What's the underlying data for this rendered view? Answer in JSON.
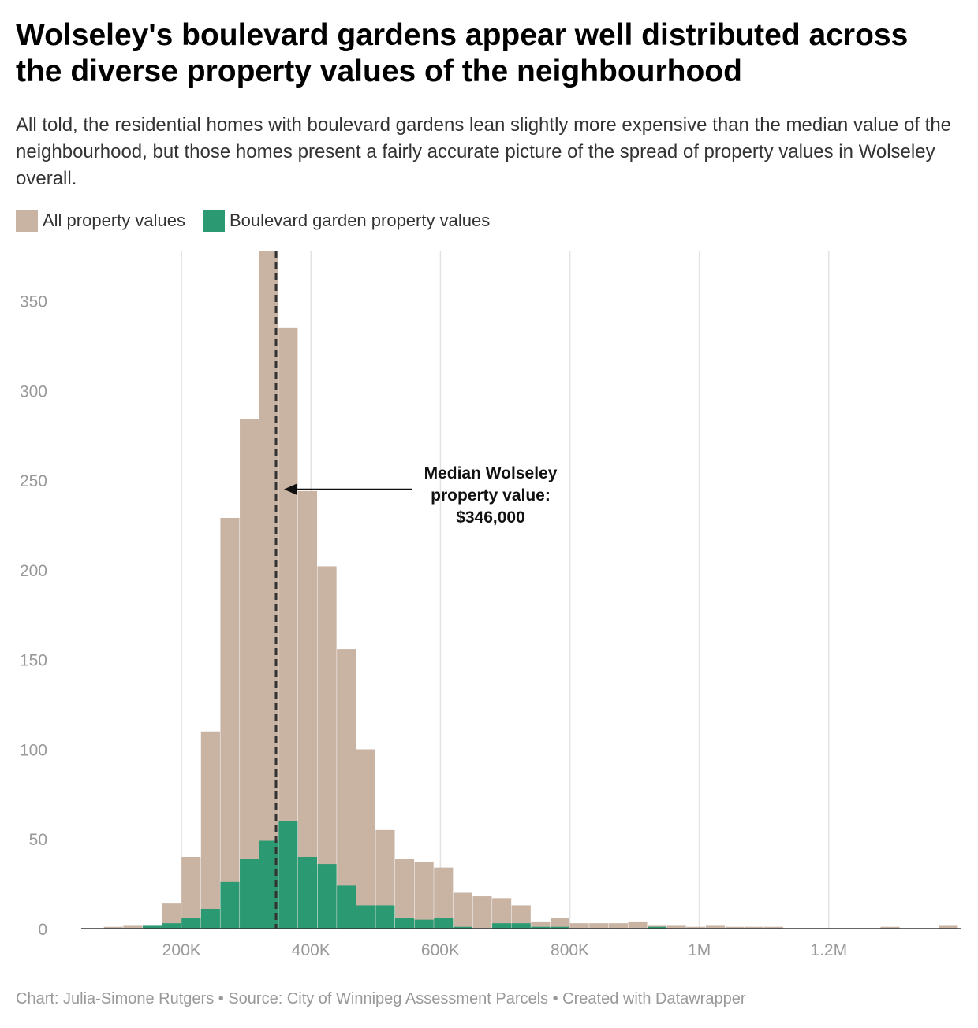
{
  "title": "Wolseley's boulevard gardens appear well distributed across the diverse property values of the neighbourhood",
  "subtitle": "All told, the residential homes with boulevard gardens lean slightly more expensive than the median value of the neighbourhood, but those homes present a fairly accurate picture of the spread of property values in Wolseley overall.",
  "footer": "Chart: Julia-Simone Rutgers • Source: City of Winnipeg Assessment Parcels • Created with Datawrapper",
  "colors": {
    "all": "#c9b3a3",
    "garden": "#2b9a72",
    "grid": "#e2e2e2",
    "axis": "#333333",
    "median_line": "#333333"
  },
  "chart_data": {
    "type": "bar",
    "bin_width": 30000,
    "x": [
      80000,
      110000,
      140000,
      170000,
      200000,
      230000,
      260000,
      290000,
      320000,
      350000,
      380000,
      410000,
      440000,
      470000,
      500000,
      530000,
      560000,
      590000,
      620000,
      650000,
      680000,
      710000,
      740000,
      770000,
      800000,
      830000,
      860000,
      890000,
      920000,
      950000,
      980000,
      1010000,
      1040000,
      1070000,
      1100000,
      1130000,
      1160000,
      1190000,
      1220000,
      1250000,
      1280000,
      1310000,
      1340000,
      1370000
    ],
    "series": [
      {
        "name": "All property values",
        "values": [
          1,
          2,
          2,
          14,
          40,
          110,
          229,
          284,
          380,
          335,
          244,
          202,
          156,
          100,
          55,
          39,
          37,
          34,
          20,
          18,
          17,
          13,
          4,
          6,
          3,
          3,
          3,
          4,
          2,
          2,
          1,
          2,
          1,
          1,
          1,
          0,
          0,
          0,
          0,
          0,
          1,
          0,
          0,
          2
        ]
      },
      {
        "name": "Boulevard garden property values",
        "values": [
          0,
          0,
          2,
          3,
          6,
          11,
          26,
          39,
          49,
          60,
          40,
          36,
          24,
          13,
          13,
          6,
          5,
          6,
          1,
          0,
          3,
          3,
          1,
          1,
          0,
          0,
          0,
          0,
          1,
          0,
          0,
          0,
          0,
          0,
          0,
          0,
          0,
          0,
          0,
          0,
          0,
          0,
          0,
          0
        ]
      }
    ],
    "x_ticks": [
      200000,
      400000,
      600000,
      800000,
      1000000,
      1200000
    ],
    "x_tick_labels": [
      "200K",
      "400K",
      "600K",
      "800K",
      "1M",
      "1.2M"
    ],
    "y_ticks": [
      0,
      50,
      100,
      150,
      200,
      250,
      300,
      350
    ],
    "y_tick_labels": [
      "0",
      "50",
      "100",
      "150",
      "200",
      "250",
      "300",
      "350"
    ],
    "xlim": [
      45000,
      1405000
    ],
    "ylim": [
      0,
      378
    ],
    "grid": "vertical",
    "legend_position": "top-left",
    "median": {
      "value": 346000,
      "label_lines": [
        "Median Wolseley",
        "property value:",
        "$346,000"
      ]
    }
  }
}
